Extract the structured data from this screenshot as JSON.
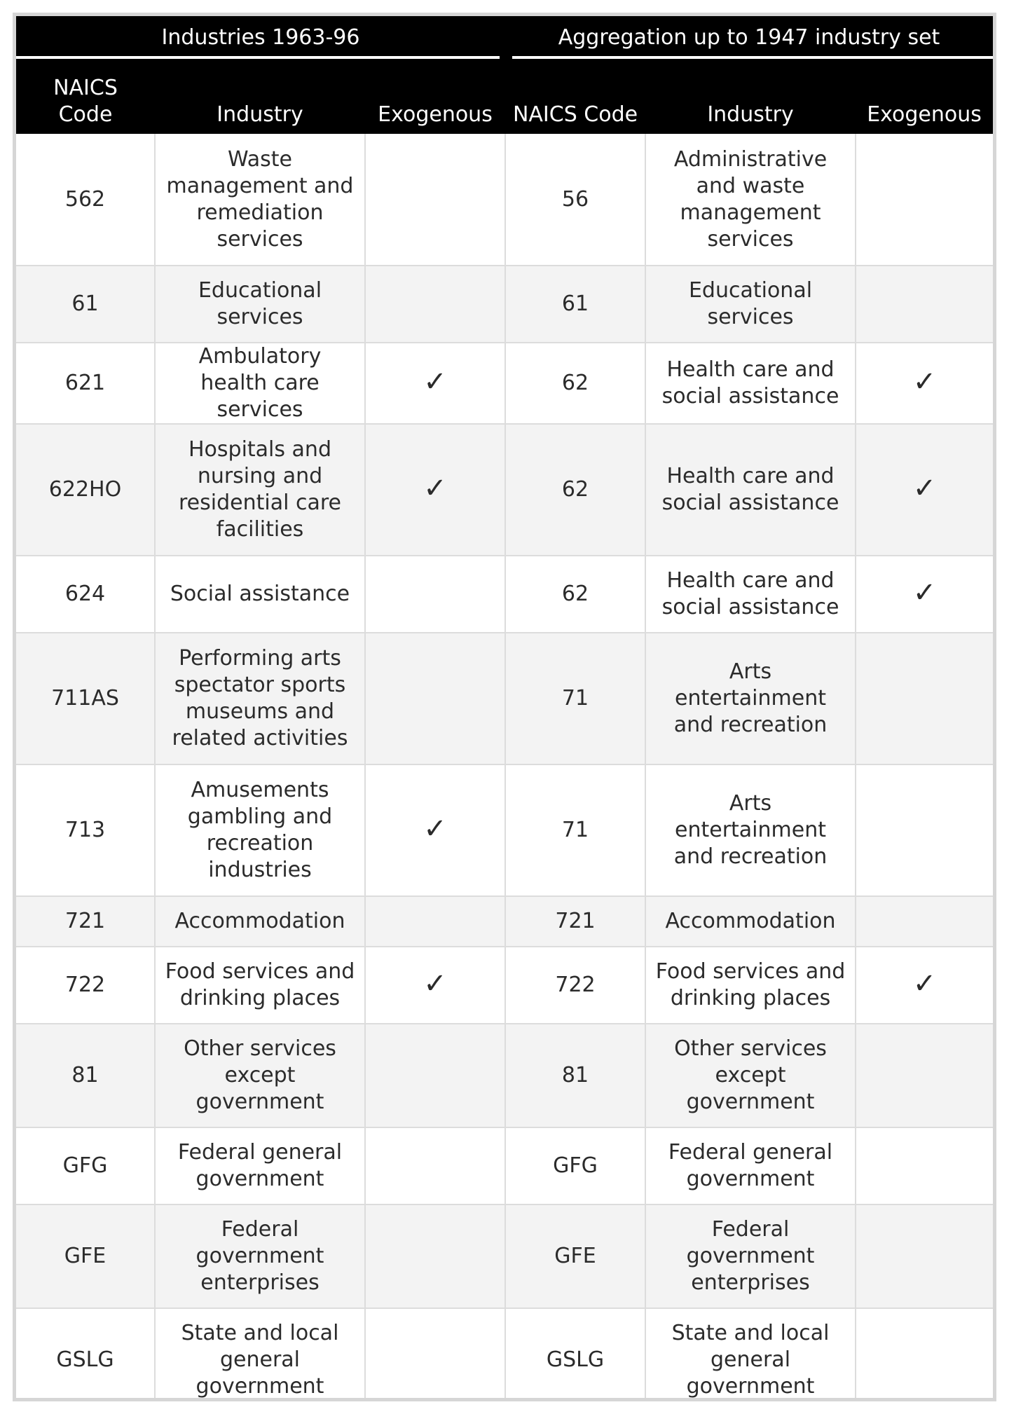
{
  "table": {
    "group_headers": {
      "left": "Industries 1963-96",
      "right": "Aggregation up to 1947 industry set"
    },
    "column_headers": {
      "naics_code_left": "NAICS Code",
      "industry_left": "Industry",
      "exogenous_left": "Exogenous",
      "naics_code_right": "NAICS Code",
      "industry_right": "Industry",
      "exogenous_right": "Exogenous"
    },
    "check_symbol": "✓",
    "rows": [
      {
        "code": "562",
        "industry": "Waste management and remediation services",
        "exo": "",
        "agg_code": "56",
        "agg_industry": "Administrative and waste management services",
        "agg_exo": "",
        "height": 188
      },
      {
        "code": "61",
        "industry": "Educational services",
        "exo": "",
        "agg_code": "61",
        "agg_industry": "Educational services",
        "agg_exo": "",
        "height": 110
      },
      {
        "code": "621",
        "industry": "Ambulatory health care services",
        "exo": "✓",
        "agg_code": "62",
        "agg_industry": "Health care and social assistance",
        "agg_exo": "✓",
        "height": 110
      },
      {
        "code": "622HO",
        "industry": "Hospitals and nursing and residential care facilities",
        "exo": "✓",
        "agg_code": "62",
        "agg_industry": "Health care and social assistance",
        "agg_exo": "✓",
        "height": 188
      },
      {
        "code": "624",
        "industry": "Social assistance",
        "exo": "",
        "agg_code": "62",
        "agg_industry": "Health care and social assistance",
        "agg_exo": "✓",
        "height": 110
      },
      {
        "code": "711AS",
        "industry": "Performing arts spectator sports museums and related activities",
        "exo": "",
        "agg_code": "71",
        "agg_industry": "Arts entertainment and recreation",
        "agg_exo": "",
        "height": 188
      },
      {
        "code": "713",
        "industry": "Amusements gambling and recreation industries",
        "exo": "✓",
        "agg_code": "71",
        "agg_industry": "Arts entertainment and recreation",
        "agg_exo": "",
        "height": 188
      },
      {
        "code": "721",
        "industry": "Accommodation",
        "exo": "",
        "agg_code": "721",
        "agg_industry": "Accommodation",
        "agg_exo": "",
        "height": 72
      },
      {
        "code": "722",
        "industry": "Food services and drinking places",
        "exo": "✓",
        "agg_code": "722",
        "agg_industry": "Food services and drinking places",
        "agg_exo": "✓",
        "height": 110
      },
      {
        "code": "81",
        "industry": "Other services except government",
        "exo": "",
        "agg_code": "81",
        "agg_industry": "Other services except government",
        "agg_exo": "",
        "height": 148
      },
      {
        "code": "GFG",
        "industry": "Federal general government",
        "exo": "",
        "agg_code": "GFG",
        "agg_industry": "Federal general government",
        "agg_exo": "",
        "height": 110
      },
      {
        "code": "GFE",
        "industry": "Federal government enterprises",
        "exo": "",
        "agg_code": "GFE",
        "agg_industry": "Federal government enterprises",
        "agg_exo": "",
        "height": 148
      },
      {
        "code": "GSLG",
        "industry": "State and local general government",
        "exo": "",
        "agg_code": "GSLG",
        "agg_industry": "State and local general government",
        "agg_exo": "",
        "height": 148
      }
    ]
  }
}
